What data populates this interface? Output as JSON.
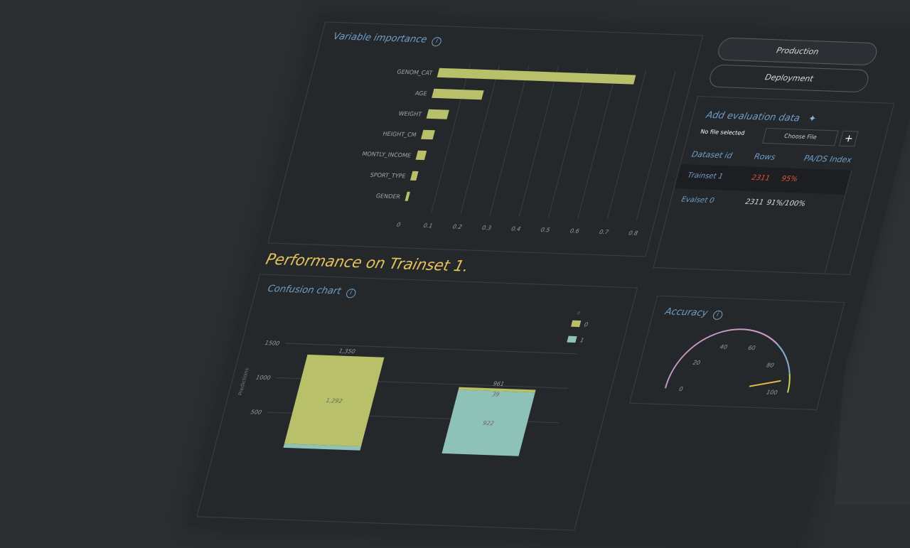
{
  "variable_importance": {
    "title": "Variable importance",
    "info_icon": "i"
  },
  "buttons": {
    "production": "Production",
    "deployment": "Deployment"
  },
  "evaluation": {
    "title": "Add evaluation data",
    "plug_icon": "plug-icon",
    "file_status": "No file selected",
    "choose_file": "Choose File",
    "add": "+",
    "columns": [
      "Dataset id",
      "Rows",
      "PA/DS Index"
    ],
    "rows": [
      {
        "id": "Trainset 1",
        "rows": "2311",
        "index": "95%",
        "selected": true
      },
      {
        "id": "Evalset 0",
        "rows": "2311",
        "index": "91%/100%",
        "selected": false
      }
    ]
  },
  "performance_title": "Performance on Trainset 1.",
  "confusion": {
    "title": "Confusion chart",
    "info_icon": "i"
  },
  "accuracy": {
    "title": "Accuracy",
    "info_icon": "i"
  },
  "colors": {
    "bar": "#b8c06a",
    "teal": "#8ec1b8",
    "title": "#6f9fc9",
    "accent": "#e6c25a",
    "alert": "#e0533d"
  },
  "chart_data": [
    {
      "type": "bar",
      "orientation": "horizontal",
      "title": "Variable importance",
      "categories": [
        "GENOM_CAT",
        "AGE",
        "WEIGHT",
        "HEIGHT_CM",
        "MONTLY_INCOME",
        "SPORT_TYPE",
        "GENDER"
      ],
      "values": [
        0.67,
        0.17,
        0.07,
        0.04,
        0.03,
        0.02,
        0.01
      ],
      "xlim": [
        0,
        0.8
      ],
      "xticks": [
        "0",
        "0.1",
        "0.2",
        "0.3",
        "0.4",
        "0.5",
        "0.6",
        "0.7",
        "0.8"
      ],
      "grid": true
    },
    {
      "type": "bar",
      "stacked": true,
      "title": "Confusion chart",
      "ylabel": "Predictions",
      "yticks": [
        "500",
        "1000",
        "1500"
      ],
      "ylim": [
        0,
        1600
      ],
      "legend_title": "#",
      "legend": [
        "0",
        "1"
      ],
      "legend_position": "top-right",
      "bars": [
        {
          "total": "1,350",
          "segments": [
            {
              "series": "1",
              "value": 58,
              "label": ""
            },
            {
              "series": "0",
              "value": 1292,
              "label": "1,292"
            }
          ]
        },
        {
          "total": "961",
          "segments": [
            {
              "series": "1",
              "value": 922,
              "label": "922"
            },
            {
              "series": "0",
              "value": 39,
              "label": "39"
            }
          ]
        }
      ]
    },
    {
      "type": "gauge",
      "title": "Accuracy",
      "value": 93,
      "range": [
        0,
        100
      ],
      "ticks": [
        "0",
        "20",
        "40",
        "60",
        "80",
        "100"
      ],
      "bands": [
        {
          "from": 0,
          "to": 72,
          "color": "#c79ac6"
        },
        {
          "from": 72,
          "to": 90,
          "color": "#7fa6c9"
        },
        {
          "from": 90,
          "to": 100,
          "color": "#c8cf5e"
        }
      ]
    }
  ]
}
